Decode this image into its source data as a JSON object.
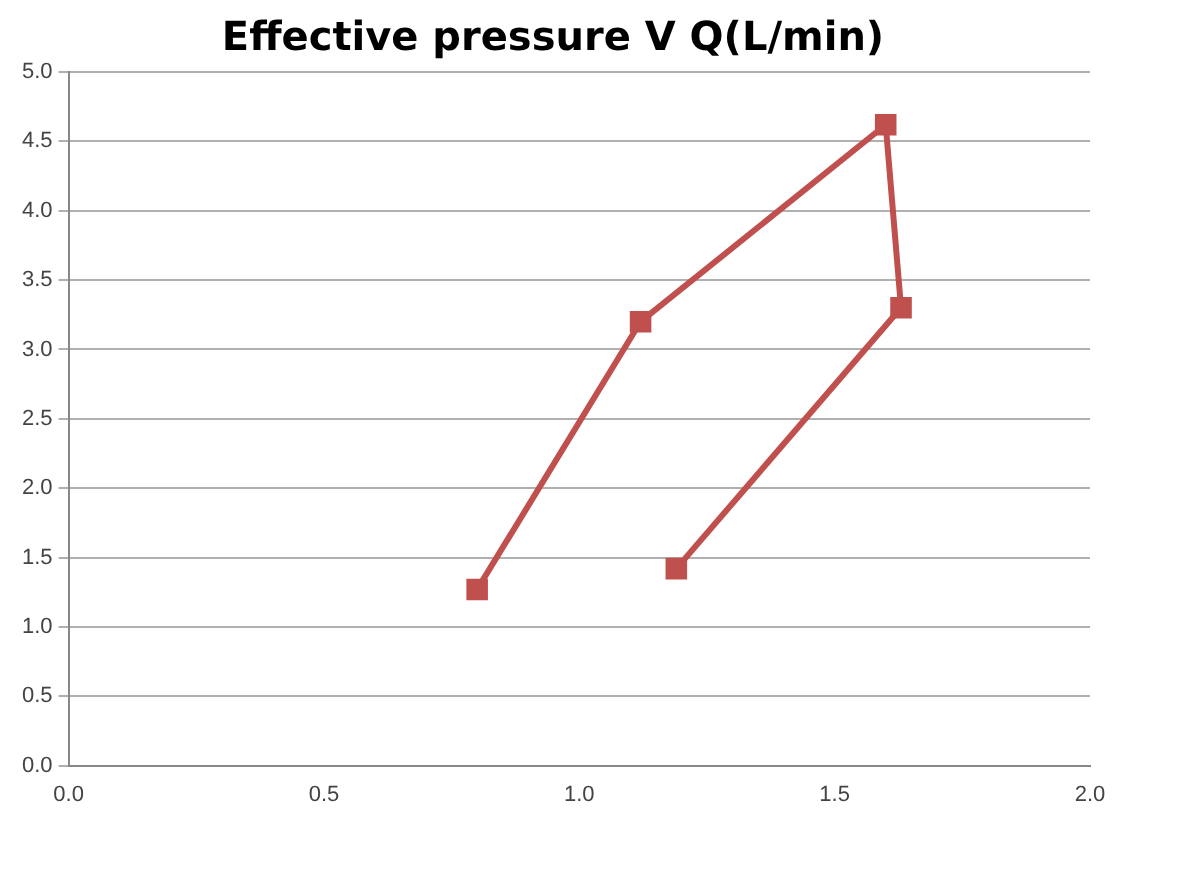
{
  "chart_data": {
    "type": "line",
    "title": "Effective pressure V Q(L/min)",
    "x": [
      0.8,
      1.12,
      1.6,
      1.63,
      1.19
    ],
    "series": [
      {
        "color": "#c0504d",
        "values": [
          1.27,
          3.2,
          4.62,
          3.3,
          1.42
        ]
      }
    ],
    "xlim": [
      0,
      2
    ],
    "xticks": [
      {
        "value": 0,
        "label": "0.0"
      },
      {
        "value": 0.5,
        "label": "0.5"
      },
      {
        "value": 1,
        "label": "1.0"
      },
      {
        "value": 1.5,
        "label": "1.5"
      },
      {
        "value": 2,
        "label": "2.0"
      }
    ],
    "ylim": [
      0,
      5
    ],
    "yticks": [
      {
        "value": 0,
        "label": "0.0"
      },
      {
        "value": 0.5,
        "label": "0.5"
      },
      {
        "value": 1,
        "label": "1.0"
      },
      {
        "value": 1.5,
        "label": "1.5"
      },
      {
        "value": 2,
        "label": "2.0"
      },
      {
        "value": 2.5,
        "label": "2.5"
      },
      {
        "value": 3,
        "label": "3.0"
      },
      {
        "value": 3.5,
        "label": "3.5"
      },
      {
        "value": 4,
        "label": "4.0"
      },
      {
        "value": 4.5,
        "label": "4.5"
      },
      {
        "value": 5,
        "label": "5.0"
      }
    ],
    "grid": "y",
    "marker": "square",
    "line_style": "solid",
    "legend": false
  }
}
